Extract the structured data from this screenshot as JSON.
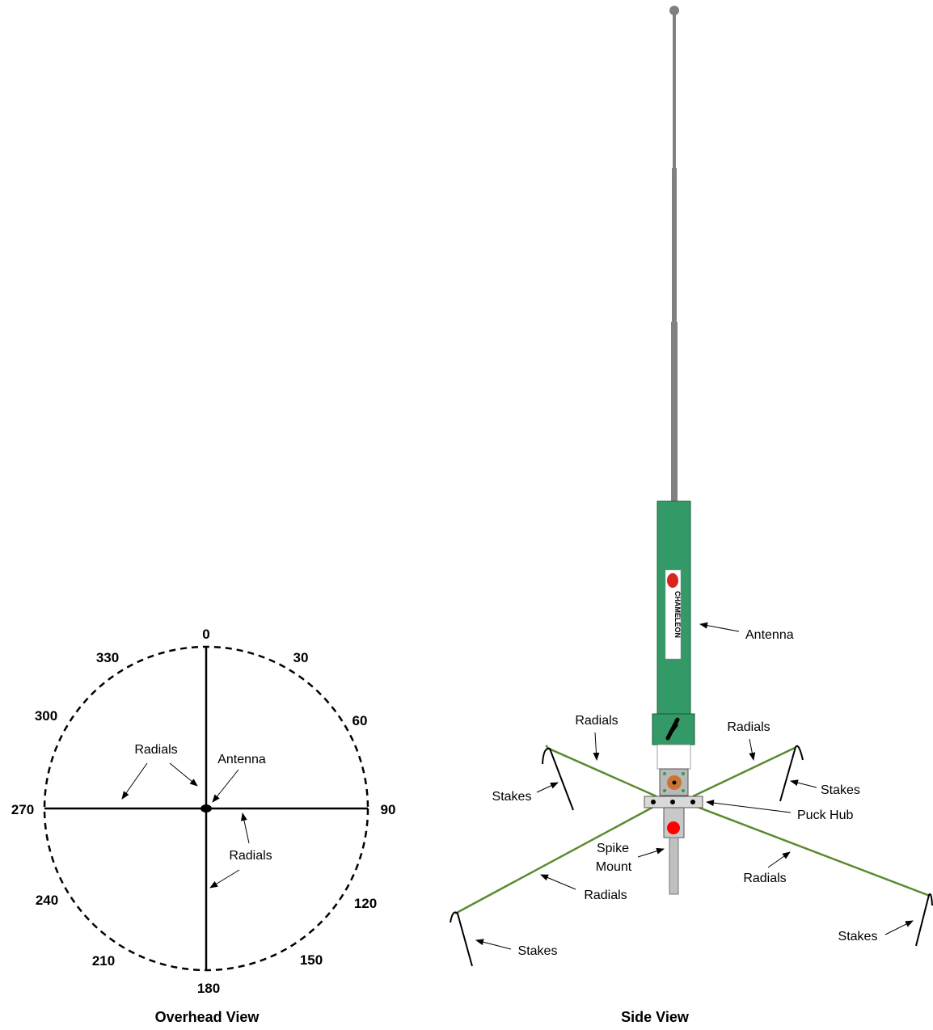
{
  "overhead_view": {
    "title": "Overhead View",
    "compass": [
      "0",
      "30",
      "60",
      "90",
      "120",
      "150",
      "180",
      "210",
      "240",
      "270",
      "300",
      "330"
    ],
    "labels": {
      "radials_top": "Radials",
      "antenna": "Antenna",
      "radials_bottom": "Radials"
    }
  },
  "side_view": {
    "title": "Side View",
    "logo_text": "CHAMELEON",
    "labels": {
      "antenna": "Antenna",
      "radials_upper_left": "Radials",
      "radials_upper_right": "Radials",
      "stakes_left": "Stakes",
      "stakes_right": "Stakes",
      "puck_hub": "Puck Hub",
      "spike_mount_line1": "Spike",
      "spike_mount_line2": "Mount",
      "radials_lower_left": "Radials",
      "radials_lower_right": "Radials",
      "stakes_lower_left": "Stakes",
      "stakes_lower_right": "Stakes"
    }
  },
  "colors": {
    "antenna_body": "#339966",
    "antenna_border": "#1a5c3a",
    "whip": "#808080",
    "radial_wire": "#5a8a2e",
    "hub": "#d9d9d9",
    "connector": "#c87533",
    "spike_dot": "#ff0000",
    "logo_red": "#d9261c"
  }
}
